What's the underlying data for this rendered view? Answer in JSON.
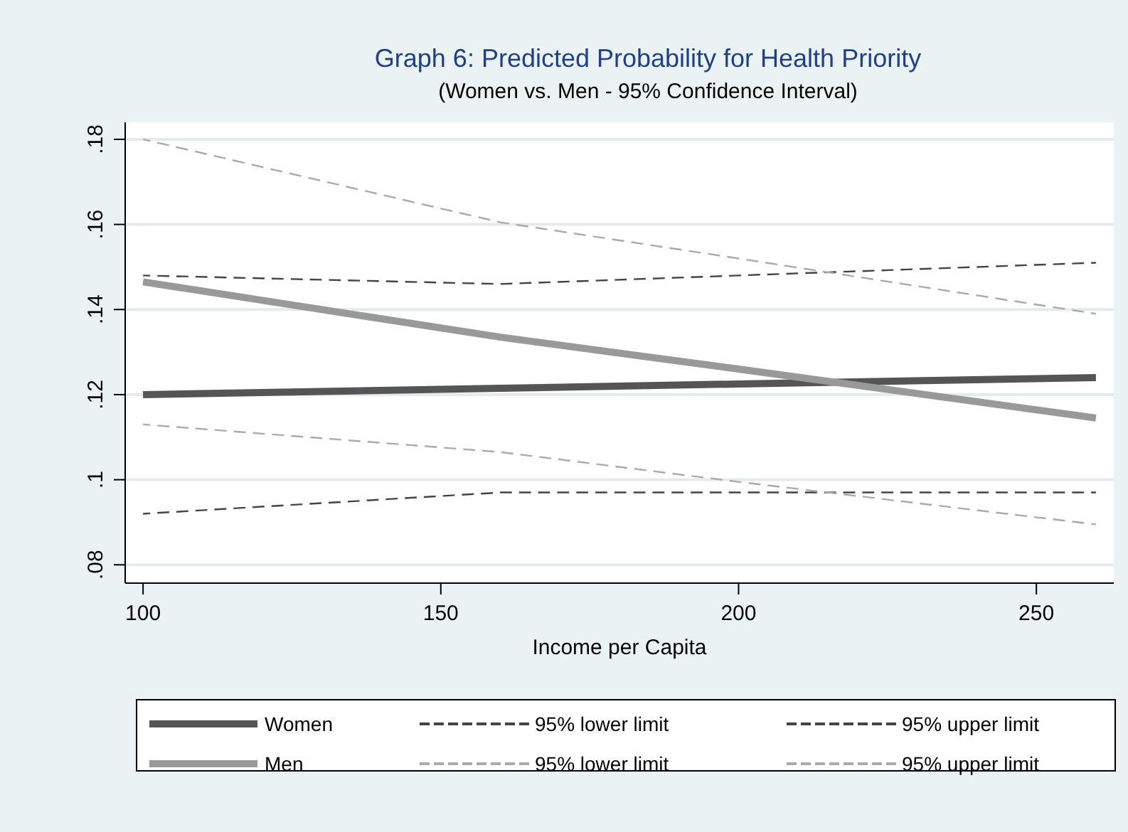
{
  "chart_data": {
    "type": "line",
    "title": "Graph 6: Predicted Probability for Health Priority",
    "subtitle": "(Women vs. Men - 95% Confidence Interval)",
    "xlabel": "Income per Capita",
    "x": [
      100,
      160,
      200,
      260
    ],
    "series": [
      {
        "name": "Women",
        "color": "#555555",
        "values": [
          0.12,
          0.1215,
          0.1225,
          0.124
        ],
        "line_style": "solid"
      },
      {
        "name": "95% lower limit",
        "color": "#444444",
        "values": [
          0.092,
          0.097,
          0.097,
          0.097
        ],
        "line_style": "dashed"
      },
      {
        "name": "95% upper limit",
        "color": "#444444",
        "values": [
          0.148,
          0.146,
          0.148,
          0.151
        ],
        "line_style": "dashed"
      },
      {
        "name": "Men",
        "color": "#999999",
        "values": [
          0.1465,
          0.1335,
          0.126,
          0.1145
        ],
        "line_style": "solid"
      },
      {
        "name": "95% lower limit",
        "color": "#aaaaaa",
        "values": [
          0.113,
          0.1065,
          0.0995,
          0.0895
        ],
        "line_style": "dashed"
      },
      {
        "name": "95% upper limit",
        "color": "#aaaaaa",
        "values": [
          0.18,
          0.1605,
          0.152,
          0.139
        ],
        "line_style": "dashed"
      }
    ],
    "xlim": [
      97,
      263
    ],
    "xticks": [
      100,
      150,
      200,
      250
    ],
    "ylim": [
      0.0757,
      0.184
    ],
    "yticks": [
      {
        "value": 0.08,
        "label": ".08"
      },
      {
        "value": 0.1,
        "label": ".1"
      },
      {
        "value": 0.12,
        "label": ".12"
      },
      {
        "value": 0.14,
        "label": ".14"
      },
      {
        "value": 0.16,
        "label": ".16"
      },
      {
        "value": 0.18,
        "label": ".18"
      }
    ],
    "grid": "y",
    "legend": "bottom",
    "marker": "none"
  }
}
